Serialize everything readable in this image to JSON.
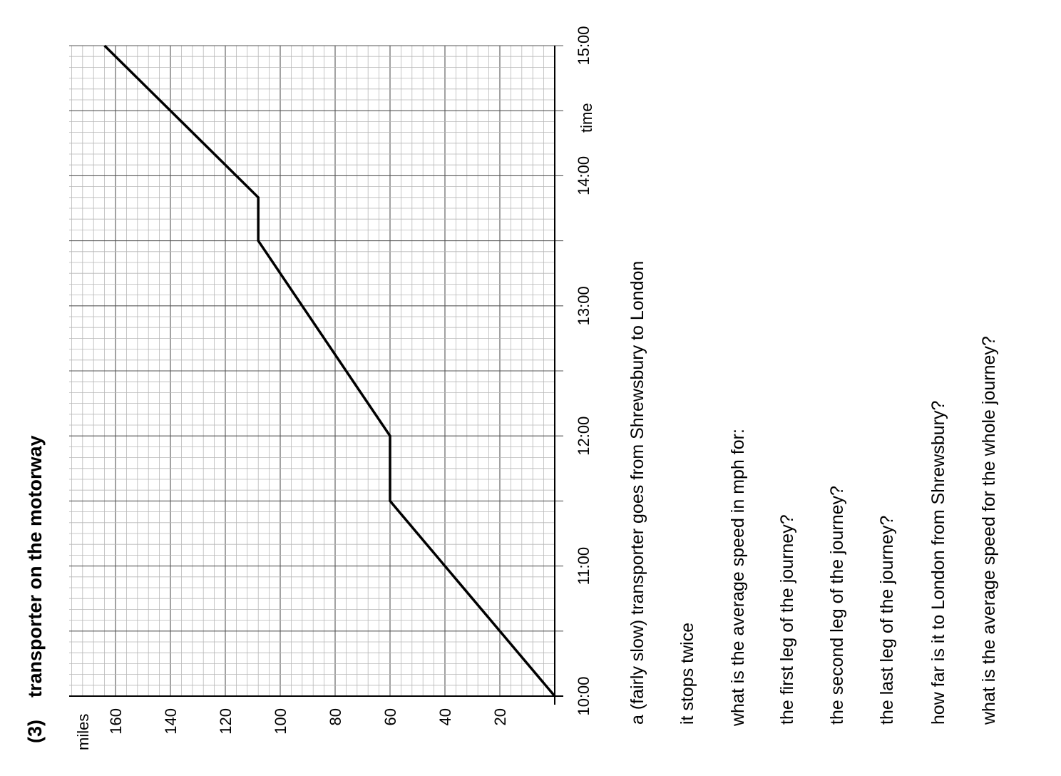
{
  "chart_data": {
    "type": "line",
    "title_number": "(3)",
    "title": "transporter on the motorway",
    "xlabel": "time",
    "ylabel": "miles",
    "x_ticks": [
      "10:00",
      "11:00",
      "12:00",
      "13:00",
      "14:00",
      "15:00"
    ],
    "y_ticks": [
      20,
      40,
      60,
      80,
      100,
      120,
      140,
      160
    ],
    "xlim": [
      "10:00",
      "15:00"
    ],
    "ylim": [
      0,
      170
    ],
    "grid": true,
    "series": [
      {
        "points": [
          {
            "time": "10:00",
            "miles": 0
          },
          {
            "time": "11:30",
            "miles": 60
          },
          {
            "time": "12:00",
            "miles": 60
          },
          {
            "time": "13:30",
            "miles": 108
          },
          {
            "time": "13:50",
            "miles": 108
          },
          {
            "time": "15:00",
            "miles": 164
          }
        ]
      }
    ]
  },
  "questions": [
    "a (fairly slow) transporter goes from Shrewsbury to London",
    "it stops twice",
    "what is the average speed in mph for:",
    "the first leg of the journey?",
    "the second leg of the journey?",
    "the last leg of the journey?",
    "how far is it to London from Shrewsbury?",
    "what is the average speed for the whole journey?"
  ]
}
